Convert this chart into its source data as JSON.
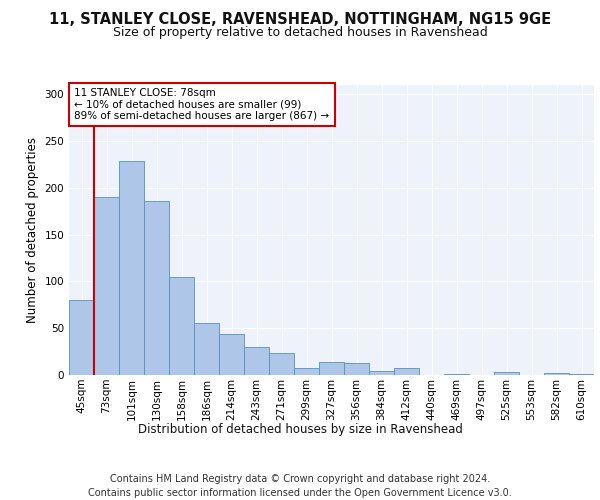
{
  "title1": "11, STANLEY CLOSE, RAVENSHEAD, NOTTINGHAM, NG15 9GE",
  "title2": "Size of property relative to detached houses in Ravenshead",
  "xlabel": "Distribution of detached houses by size in Ravenshead",
  "ylabel": "Number of detached properties",
  "categories": [
    "45sqm",
    "73sqm",
    "101sqm",
    "130sqm",
    "158sqm",
    "186sqm",
    "214sqm",
    "243sqm",
    "271sqm",
    "299sqm",
    "327sqm",
    "356sqm",
    "384sqm",
    "412sqm",
    "440sqm",
    "469sqm",
    "497sqm",
    "525sqm",
    "553sqm",
    "582sqm",
    "610sqm"
  ],
  "values": [
    80,
    190,
    229,
    186,
    105,
    56,
    44,
    30,
    23,
    8,
    14,
    13,
    4,
    7,
    0,
    1,
    0,
    3,
    0,
    2,
    1
  ],
  "bar_color": "#aec6e8",
  "bar_edge_color": "#5a8fc0",
  "vline_color": "#cc0000",
  "annotation_text": "11 STANLEY CLOSE: 78sqm\n← 10% of detached houses are smaller (99)\n89% of semi-detached houses are larger (867) →",
  "annotation_box_color": "#ffffff",
  "annotation_box_edge_color": "#cc0000",
  "ylim": [
    0,
    310
  ],
  "yticks": [
    0,
    50,
    100,
    150,
    200,
    250,
    300
  ],
  "background_color": "#eef2fa",
  "grid_color": "#ffffff",
  "footer": "Contains HM Land Registry data © Crown copyright and database right 2024.\nContains public sector information licensed under the Open Government Licence v3.0.",
  "title1_fontsize": 10.5,
  "title2_fontsize": 9,
  "xlabel_fontsize": 8.5,
  "ylabel_fontsize": 8.5,
  "footer_fontsize": 7,
  "tick_fontsize": 7.5,
  "annot_fontsize": 7.5
}
